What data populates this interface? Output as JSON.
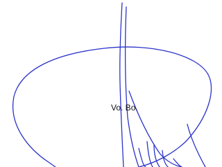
{
  "signature": {
    "text": "Vo. Bo."
  }
}
